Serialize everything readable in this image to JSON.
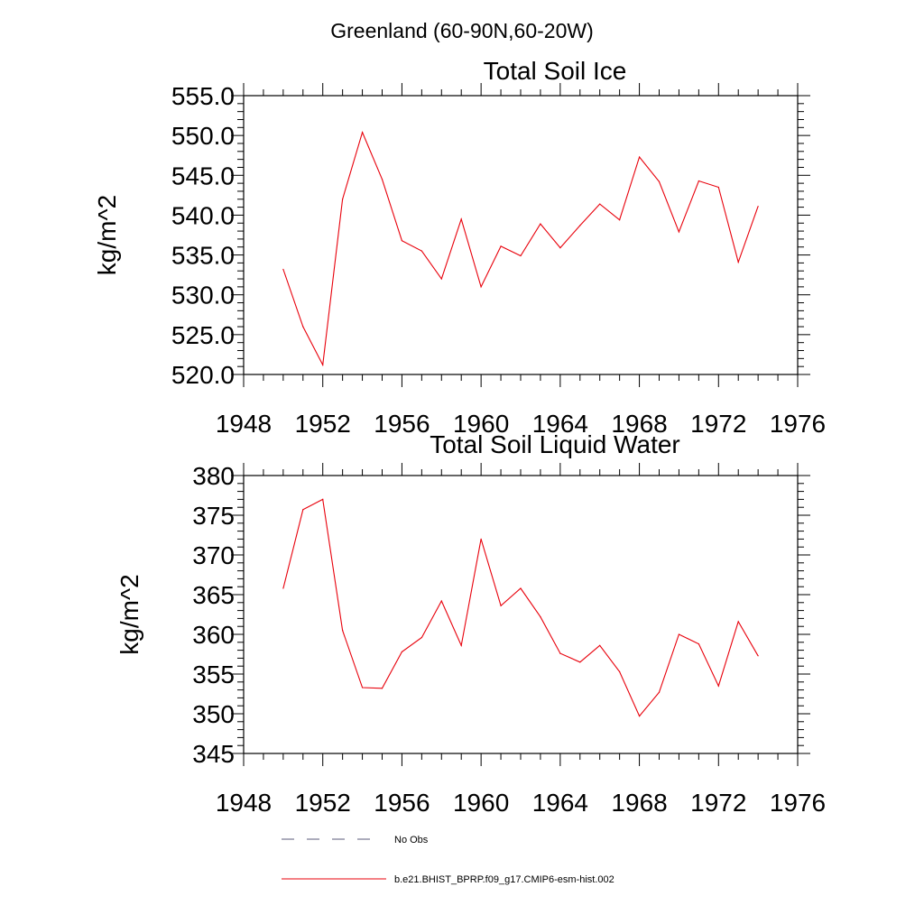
{
  "page": {
    "suptitle": "Greenland (60-90N,60-20W)"
  },
  "chart_data": [
    {
      "type": "line",
      "title": "Total Soil Ice",
      "xlabel": "",
      "ylabel": "kg/m^2",
      "xlim": [
        1948,
        1976
      ],
      "ylim": [
        520,
        555
      ],
      "xticks": [
        "1948",
        "1952",
        "1956",
        "1960",
        "1964",
        "1968",
        "1972",
        "1976"
      ],
      "yticks": [
        "520.0",
        "525.0",
        "530.0",
        "535.0",
        "540.0",
        "545.0",
        "550.0",
        "555.0"
      ],
      "series": [
        {
          "name": "b.e21.BHIST_BPRP.f09_g17.CMIP6-esm-hist.002",
          "color": "#e8000b",
          "x": [
            1950,
            1951,
            1952,
            1953,
            1954,
            1955,
            1956,
            1957,
            1958,
            1959,
            1960,
            1961,
            1962,
            1963,
            1964,
            1965,
            1966,
            1967,
            1968,
            1969,
            1970,
            1971,
            1972,
            1973,
            1974
          ],
          "values": [
            533.2,
            526.0,
            521.2,
            542.0,
            550.4,
            544.5,
            536.8,
            535.5,
            532.0,
            539.5,
            531.0,
            536.1,
            534.9,
            538.9,
            535.9,
            538.7,
            541.4,
            539.4,
            547.3,
            544.2,
            537.9,
            544.3,
            543.5,
            534.1,
            541.1
          ]
        }
      ],
      "grid": false
    },
    {
      "type": "line",
      "title": "Total Soil Liquid Water",
      "xlabel": "",
      "ylabel": "kg/m^2",
      "xlim": [
        1948,
        1976
      ],
      "ylim": [
        345,
        380
      ],
      "xticks": [
        "1948",
        "1952",
        "1956",
        "1960",
        "1964",
        "1968",
        "1972",
        "1976"
      ],
      "yticks": [
        "345",
        "350",
        "355",
        "360",
        "365",
        "370",
        "375",
        "380"
      ],
      "series": [
        {
          "name": "b.e21.BHIST_BPRP.f09_g17.CMIP6-esm-hist.002",
          "color": "#e8000b",
          "x": [
            1950,
            1951,
            1952,
            1953,
            1954,
            1955,
            1956,
            1957,
            1958,
            1959,
            1960,
            1961,
            1962,
            1963,
            1964,
            1965,
            1966,
            1967,
            1968,
            1969,
            1970,
            1971,
            1972,
            1973,
            1974
          ],
          "values": [
            365.8,
            375.7,
            377.0,
            360.5,
            353.3,
            353.2,
            357.8,
            359.6,
            364.2,
            358.6,
            372.0,
            363.6,
            365.8,
            362.2,
            357.6,
            356.5,
            358.6,
            355.3,
            349.7,
            352.7,
            360.0,
            358.8,
            353.5,
            361.6,
            357.3
          ]
        }
      ],
      "grid": false
    }
  ],
  "legend": {
    "placement": "bottom-left",
    "entries": [
      {
        "label": "No Obs",
        "style": "dashed",
        "color": "#5a5a7a"
      },
      {
        "label": "b.e21.BHIST_BPRP.f09_g17.CMIP6-esm-hist.002",
        "style": "solid",
        "color": "#e8000b"
      }
    ]
  }
}
